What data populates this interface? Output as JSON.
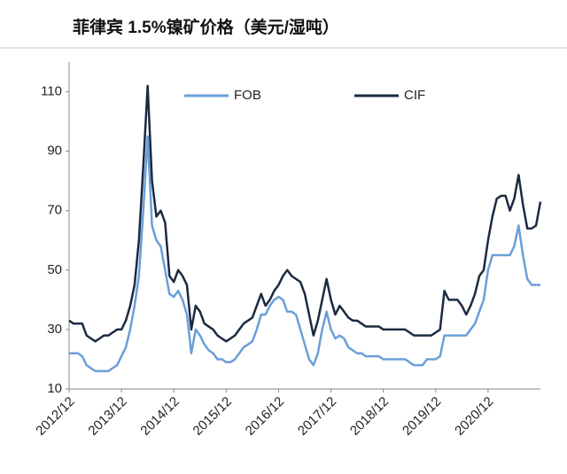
{
  "chart_data": {
    "type": "line",
    "title": "菲律宾 1.5%镍矿价格（美元/湿吨）",
    "categories": [
      "2012/12",
      null,
      null,
      null,
      null,
      null,
      null,
      null,
      null,
      null,
      null,
      null,
      "2013/12",
      null,
      null,
      null,
      null,
      null,
      null,
      null,
      null,
      null,
      null,
      null,
      "2014/12",
      null,
      null,
      null,
      null,
      null,
      null,
      null,
      null,
      null,
      null,
      null,
      "2015/12",
      null,
      null,
      null,
      null,
      null,
      null,
      null,
      null,
      null,
      null,
      null,
      "2016/12",
      null,
      null,
      null,
      null,
      null,
      null,
      null,
      null,
      null,
      null,
      null,
      "2017/12",
      null,
      null,
      null,
      null,
      null,
      null,
      null,
      null,
      null,
      null,
      null,
      "2018/12",
      null,
      null,
      null,
      null,
      null,
      null,
      null,
      null,
      null,
      null,
      null,
      "2019/12",
      null,
      null,
      null,
      null,
      null,
      null,
      null,
      null,
      null,
      null,
      null,
      "2020/12",
      null,
      null,
      null,
      null,
      null,
      null,
      null,
      null,
      null,
      null,
      null,
      null
    ],
    "series": [
      {
        "name": "FOB",
        "color": "#6a9fd8",
        "values": [
          22,
          22,
          22,
          21,
          18,
          17,
          16,
          16,
          16,
          16,
          17,
          18,
          21,
          24,
          30,
          38,
          48,
          70,
          95,
          65,
          60,
          58,
          50,
          42,
          41,
          43,
          40,
          35,
          22,
          30,
          28,
          25,
          23,
          22,
          20,
          20,
          19,
          19,
          20,
          22,
          24,
          25,
          26,
          30,
          35,
          35,
          38,
          40,
          41,
          40,
          36,
          36,
          35,
          30,
          25,
          20,
          18,
          22,
          30,
          36,
          30,
          27,
          28,
          27,
          24,
          23,
          22,
          22,
          21,
          21,
          21,
          21,
          20,
          20,
          20,
          20,
          20,
          20,
          19,
          18,
          18,
          18,
          20,
          20,
          20,
          21,
          28,
          28,
          28,
          28,
          28,
          28,
          30,
          32,
          36,
          40,
          50,
          55,
          55,
          55,
          55,
          55,
          58,
          65,
          55,
          47,
          45,
          45,
          45
        ]
      },
      {
        "name": "CIF",
        "color": "#1b2a41",
        "values": [
          33,
          32,
          32,
          32,
          28,
          27,
          26,
          27,
          28,
          28,
          29,
          30,
          30,
          33,
          38,
          45,
          60,
          85,
          112,
          80,
          68,
          70,
          66,
          48,
          46,
          50,
          48,
          45,
          30,
          38,
          36,
          32,
          31,
          30,
          28,
          27,
          26,
          27,
          28,
          30,
          32,
          33,
          34,
          38,
          42,
          38,
          40,
          43,
          45,
          48,
          50,
          48,
          47,
          46,
          42,
          35,
          28,
          33,
          40,
          47,
          40,
          35,
          38,
          36,
          34,
          33,
          33,
          32,
          31,
          31,
          31,
          31,
          30,
          30,
          30,
          30,
          30,
          30,
          29,
          28,
          28,
          28,
          28,
          28,
          29,
          30,
          43,
          40,
          40,
          40,
          38,
          35,
          38,
          42,
          48,
          50,
          60,
          68,
          74,
          75,
          75,
          70,
          74,
          82,
          72,
          64,
          64,
          65,
          73
        ]
      }
    ],
    "ylim": [
      10,
      120
    ],
    "yticks": [
      10,
      30,
      50,
      70,
      90,
      110
    ],
    "legend": "top"
  }
}
